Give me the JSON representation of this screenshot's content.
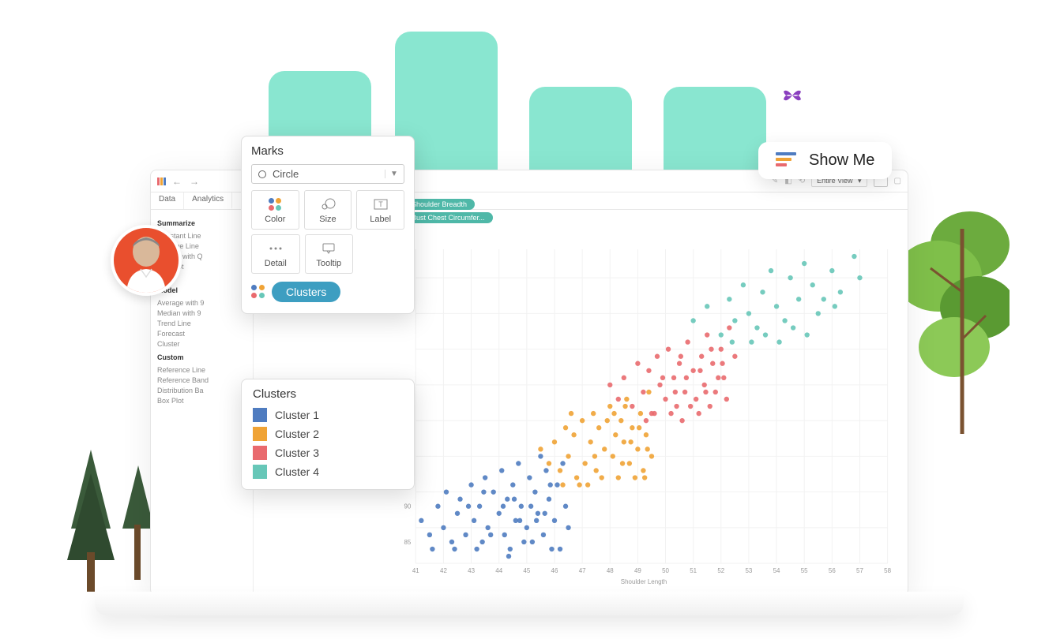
{
  "decor": {
    "mint_color": "#89e6d0",
    "butterfly_color": "#8a3fbf"
  },
  "toolbar": {
    "view_mode": "Entire View"
  },
  "tabs": {
    "data": "Data",
    "analytics": "Analytics"
  },
  "side": {
    "summarize_title": "Summarize",
    "summarize_items": [
      "Constant Line",
      "Average Line",
      "Median with Q",
      "Box Plot",
      "Totals"
    ],
    "model_title": "Model",
    "model_items": [
      "Average with 9",
      "Median with 9",
      "Trend Line",
      "Forecast",
      "Cluster"
    ],
    "custom_title": "Custom",
    "custom_items": [
      "Reference Line",
      "Reference Band",
      "Distribution Ba",
      "Box Plot"
    ]
  },
  "shelves": {
    "col_pill": "Shoulder Breadth",
    "row_pill": "Bust Chest Circumfer..."
  },
  "marks": {
    "title": "Marks",
    "dropdown": "Circle",
    "cards": {
      "color": "Color",
      "size": "Size",
      "label": "Label",
      "detail": "Detail",
      "tooltip": "Tooltip"
    },
    "clusters_label": "Clusters",
    "cluster_icon_colors": [
      "#4f7cc0",
      "#f0a335",
      "#e96a6e",
      "#67c7b8"
    ]
  },
  "legend": {
    "title": "Clusters",
    "items": [
      {
        "label": "Cluster 1",
        "color": "#4f7cc0"
      },
      {
        "label": "Cluster 2",
        "color": "#f0a335"
      },
      {
        "label": "Cluster 3",
        "color": "#e96a6e"
      },
      {
        "label": "Cluster 4",
        "color": "#67c7b8"
      }
    ]
  },
  "chart": {
    "type": "scatter",
    "xlabel": "Shoulder Length",
    "background_color": "#ffffff",
    "grid_color": "#f2f2f2",
    "point_radius": 3.2,
    "xlim": [
      41,
      58
    ],
    "ylim": [
      82,
      126
    ],
    "xticks": [
      41,
      42,
      43,
      44,
      45,
      46,
      47,
      48,
      49,
      50,
      51,
      52,
      53,
      54,
      55,
      56,
      57,
      58
    ],
    "yticks": [
      85,
      90
    ],
    "clusters": [
      {
        "color": "#4f7cc0",
        "points": [
          [
            41.2,
            88
          ],
          [
            41.5,
            86
          ],
          [
            41.8,
            90
          ],
          [
            42,
            87
          ],
          [
            42.1,
            92
          ],
          [
            42.3,
            85
          ],
          [
            42.5,
            89
          ],
          [
            42.6,
            91
          ],
          [
            42.8,
            86
          ],
          [
            43,
            93
          ],
          [
            43.1,
            88
          ],
          [
            43.3,
            90
          ],
          [
            43.4,
            85
          ],
          [
            43.5,
            94
          ],
          [
            43.6,
            87
          ],
          [
            43.8,
            92
          ],
          [
            44,
            89
          ],
          [
            44.1,
            95
          ],
          [
            44.2,
            86
          ],
          [
            44.3,
            91
          ],
          [
            44.4,
            84
          ],
          [
            44.5,
            93
          ],
          [
            44.6,
            88
          ],
          [
            44.7,
            96
          ],
          [
            44.8,
            90
          ],
          [
            45,
            87
          ],
          [
            45.1,
            94
          ],
          [
            45.2,
            85
          ],
          [
            45.3,
            92
          ],
          [
            45.4,
            89
          ],
          [
            45.5,
            97
          ],
          [
            45.6,
            86
          ],
          [
            45.7,
            95
          ],
          [
            45.8,
            91
          ],
          [
            46,
            88
          ],
          [
            46.1,
            93
          ],
          [
            46.2,
            84
          ],
          [
            46.3,
            96
          ],
          [
            46.4,
            90
          ],
          [
            46.5,
            87
          ],
          [
            43.2,
            84
          ],
          [
            43.7,
            86
          ],
          [
            44.9,
            85
          ],
          [
            45.9,
            84
          ],
          [
            42.4,
            84
          ],
          [
            44.35,
            83
          ],
          [
            41.6,
            84
          ],
          [
            42.9,
            90
          ],
          [
            43.45,
            92
          ],
          [
            44.15,
            90
          ],
          [
            44.55,
            91
          ],
          [
            44.75,
            88
          ],
          [
            45.15,
            90
          ],
          [
            45.35,
            88
          ],
          [
            45.65,
            89
          ],
          [
            45.85,
            93
          ]
        ]
      },
      {
        "color": "#f0a335",
        "points": [
          [
            45.5,
            98
          ],
          [
            45.8,
            96
          ],
          [
            46,
            99
          ],
          [
            46.2,
            95
          ],
          [
            46.4,
            101
          ],
          [
            46.5,
            97
          ],
          [
            46.7,
            100
          ],
          [
            46.8,
            94
          ],
          [
            47,
            102
          ],
          [
            47.1,
            96
          ],
          [
            47.3,
            99
          ],
          [
            47.4,
            103
          ],
          [
            47.5,
            95
          ],
          [
            47.6,
            101
          ],
          [
            47.8,
            98
          ],
          [
            48,
            104
          ],
          [
            48.1,
            97
          ],
          [
            48.2,
            100
          ],
          [
            48.3,
            94
          ],
          [
            48.4,
            102
          ],
          [
            48.5,
            99
          ],
          [
            48.6,
            105
          ],
          [
            48.7,
            96
          ],
          [
            48.8,
            101
          ],
          [
            49,
            98
          ],
          [
            49.1,
            103
          ],
          [
            49.2,
            95
          ],
          [
            49.3,
            100
          ],
          [
            49.4,
            106
          ],
          [
            49.5,
            97
          ],
          [
            46.3,
            93
          ],
          [
            46.9,
            93
          ],
          [
            47.2,
            93
          ],
          [
            47.7,
            94
          ],
          [
            48.9,
            94
          ],
          [
            49.25,
            94
          ],
          [
            46.6,
            103
          ],
          [
            47.45,
            97
          ],
          [
            47.9,
            102
          ],
          [
            48.15,
            103
          ],
          [
            48.45,
            96
          ],
          [
            48.55,
            104
          ],
          [
            48.75,
            99
          ],
          [
            49.05,
            101
          ],
          [
            49.35,
            98
          ]
        ]
      },
      {
        "color": "#e96a6e",
        "points": [
          [
            48,
            107
          ],
          [
            48.3,
            105
          ],
          [
            48.5,
            108
          ],
          [
            48.8,
            104
          ],
          [
            49,
            110
          ],
          [
            49.2,
            106
          ],
          [
            49.4,
            109
          ],
          [
            49.5,
            103
          ],
          [
            49.7,
            111
          ],
          [
            49.8,
            107
          ],
          [
            50,
            105
          ],
          [
            50.1,
            112
          ],
          [
            50.3,
            108
          ],
          [
            50.4,
            104
          ],
          [
            50.5,
            110
          ],
          [
            50.7,
            106
          ],
          [
            50.8,
            113
          ],
          [
            51,
            109
          ],
          [
            51.1,
            105
          ],
          [
            51.3,
            111
          ],
          [
            51.4,
            107
          ],
          [
            51.5,
            114
          ],
          [
            51.7,
            110
          ],
          [
            51.8,
            106
          ],
          [
            52,
            112
          ],
          [
            52.1,
            108
          ],
          [
            52.3,
            115
          ],
          [
            52.5,
            111
          ],
          [
            49.3,
            102
          ],
          [
            49.6,
            103
          ],
          [
            50.2,
            103
          ],
          [
            50.6,
            102
          ],
          [
            51.2,
            103
          ],
          [
            51.6,
            104
          ],
          [
            52.2,
            105
          ],
          [
            49.9,
            108
          ],
          [
            50.35,
            106
          ],
          [
            50.55,
            111
          ],
          [
            50.75,
            108
          ],
          [
            50.9,
            104
          ],
          [
            51.25,
            109
          ],
          [
            51.45,
            106
          ],
          [
            51.65,
            112
          ],
          [
            51.9,
            108
          ],
          [
            52.05,
            110
          ]
        ]
      },
      {
        "color": "#67c7b8",
        "points": [
          [
            51,
            116
          ],
          [
            51.5,
            118
          ],
          [
            52,
            114
          ],
          [
            52.3,
            119
          ],
          [
            52.5,
            116
          ],
          [
            52.8,
            121
          ],
          [
            53,
            117
          ],
          [
            53.3,
            115
          ],
          [
            53.5,
            120
          ],
          [
            53.8,
            123
          ],
          [
            54,
            118
          ],
          [
            54.3,
            116
          ],
          [
            54.5,
            122
          ],
          [
            54.8,
            119
          ],
          [
            55,
            124
          ],
          [
            55.3,
            121
          ],
          [
            55.5,
            117
          ],
          [
            56,
            123
          ],
          [
            56.3,
            120
          ],
          [
            56.8,
            125
          ],
          [
            57,
            122
          ],
          [
            52.4,
            113
          ],
          [
            53.1,
            113
          ],
          [
            53.6,
            114
          ],
          [
            54.1,
            113
          ],
          [
            54.6,
            115
          ],
          [
            55.1,
            114
          ],
          [
            55.7,
            119
          ],
          [
            56.1,
            118
          ]
        ]
      }
    ]
  },
  "showme": {
    "label": "Show Me",
    "bar_colors": [
      "#4f7cc0",
      "#f0a335",
      "#e96a6e"
    ]
  }
}
